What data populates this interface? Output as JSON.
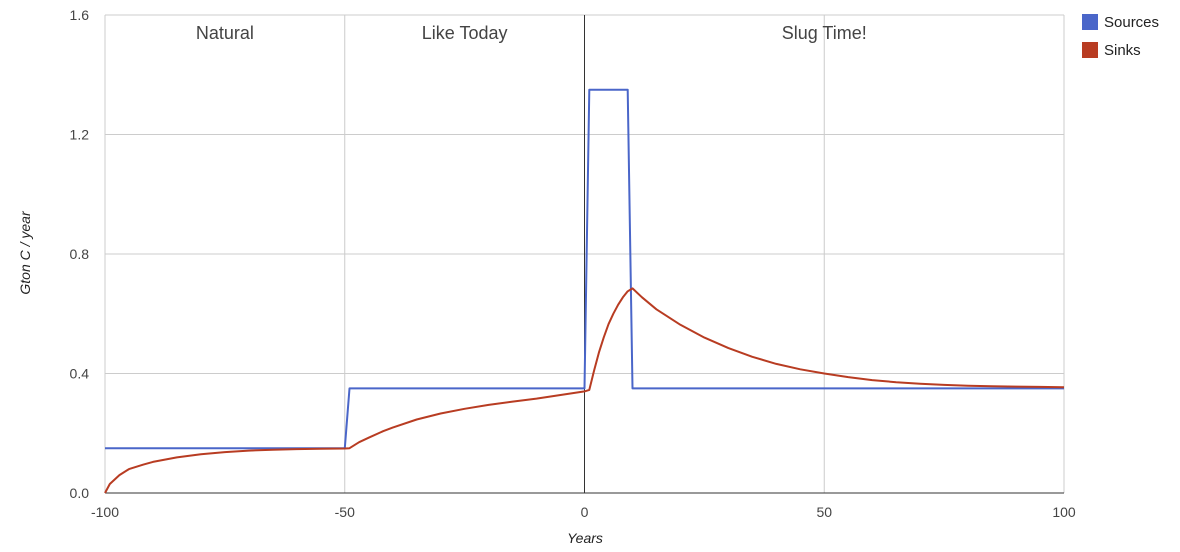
{
  "chart_data": {
    "type": "line",
    "title": "",
    "xlabel": "Years",
    "ylabel": "Gton C / year",
    "xlim": [
      -100,
      100
    ],
    "ylim": [
      0,
      1.6
    ],
    "xticks": [
      "-100",
      "-50",
      "0",
      "50",
      "100"
    ],
    "yticks": [
      "0.0",
      "0.4",
      "0.8",
      "1.2",
      "1.6"
    ],
    "grid": true,
    "legend_position": "top-right",
    "regions": [
      {
        "label": "Natural",
        "x_center": -75
      },
      {
        "label": "Like Today",
        "x_center": -25
      },
      {
        "label": "Slug Time!",
        "x_center": 50
      }
    ],
    "region_dividers_x": [
      -50,
      50
    ],
    "zero_line_x": 0,
    "series": [
      {
        "name": "Sources",
        "color": "#4a66c9",
        "x": [
          -100,
          -50,
          -49,
          0,
          1,
          9,
          10,
          100
        ],
        "y": [
          0.15,
          0.15,
          0.35,
          0.35,
          1.35,
          1.35,
          0.35,
          0.35
        ]
      },
      {
        "name": "Sinks",
        "color": "#b83c22",
        "x": [
          -100,
          -99,
          -97,
          -95,
          -92,
          -90,
          -85,
          -80,
          -75,
          -70,
          -65,
          -60,
          -55,
          -50,
          -49,
          -47,
          -45,
          -42,
          -40,
          -35,
          -30,
          -25,
          -20,
          -15,
          -10,
          -5,
          0,
          1,
          2,
          3,
          4,
          5,
          6,
          7,
          8,
          9,
          10,
          12,
          15,
          20,
          25,
          30,
          35,
          40,
          45,
          50,
          55,
          60,
          65,
          70,
          75,
          80,
          85,
          90,
          95,
          100
        ],
        "y": [
          0.0,
          0.03,
          0.06,
          0.08,
          0.095,
          0.104,
          0.119,
          0.13,
          0.137,
          0.142,
          0.145,
          0.147,
          0.148,
          0.149,
          0.15,
          0.17,
          0.185,
          0.207,
          0.219,
          0.246,
          0.266,
          0.282,
          0.295,
          0.306,
          0.316,
          0.328,
          0.34,
          0.345,
          0.41,
          0.47,
          0.52,
          0.565,
          0.6,
          0.63,
          0.655,
          0.675,
          0.685,
          0.655,
          0.615,
          0.563,
          0.52,
          0.485,
          0.456,
          0.432,
          0.414,
          0.4,
          0.388,
          0.378,
          0.371,
          0.366,
          0.362,
          0.359,
          0.357,
          0.356,
          0.355,
          0.354
        ]
      }
    ]
  }
}
